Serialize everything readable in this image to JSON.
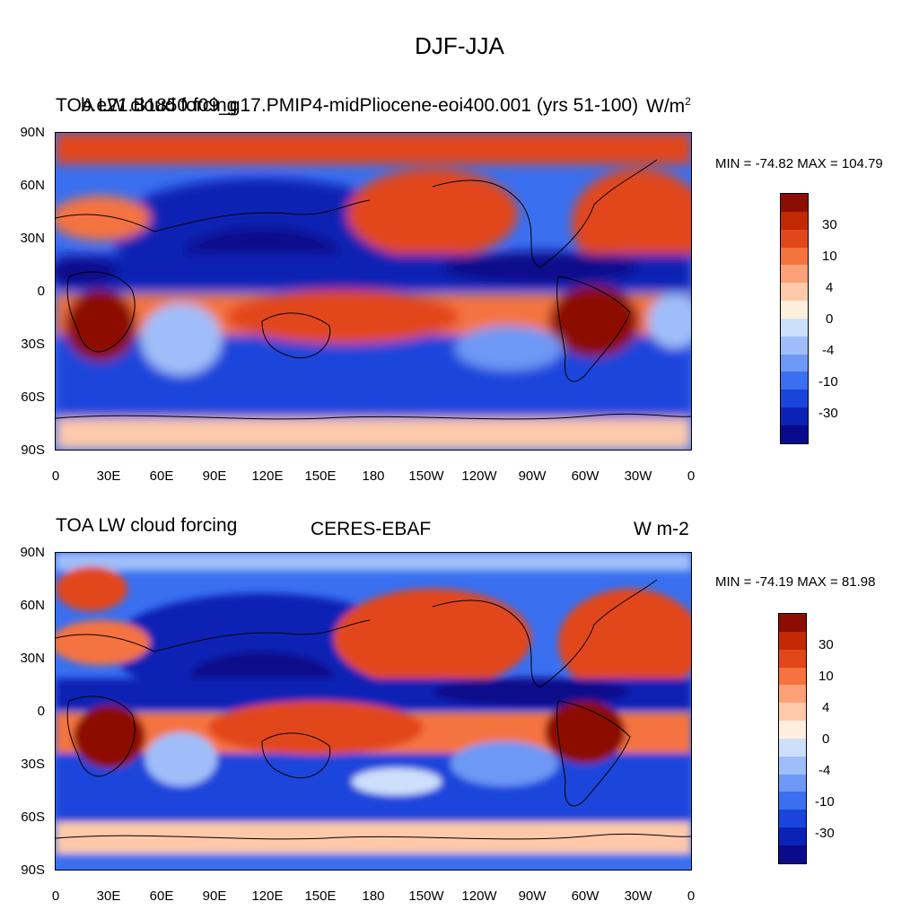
{
  "figure": {
    "title": "DJF-JJA"
  },
  "palette": [
    "#0a0a8c",
    "#0c22b4",
    "#1a45db",
    "#3a6ff0",
    "#6d98f5",
    "#9fbef9",
    "#cde0fb",
    "#fdeede",
    "#fdc9aa",
    "#fca078",
    "#f4733f",
    "#e2461b",
    "#c12a05",
    "#8c0e02"
  ],
  "colorbar_labels": [
    "30",
    "10",
    "4",
    "0",
    "-4",
    "-10",
    "-30"
  ],
  "axes": {
    "lat_labels": [
      "90N",
      "60N",
      "30N",
      "0",
      "30S",
      "60S",
      "90S"
    ],
    "lon_labels": [
      "0",
      "30E",
      "60E",
      "90E",
      "120E",
      "150E",
      "180",
      "150W",
      "120W",
      "90W",
      "60W",
      "30W",
      "0"
    ]
  },
  "panels": [
    {
      "left_title": "TOA LW cloud forcing",
      "center_title": "b.e21.B1850.f09_g17.PMIP4-midPliocene-eoi400.001 (yrs 51-100)",
      "units_prefix": "W/m",
      "units_sup": "2",
      "min_max": "MIN = -74.82 MAX = 104.79"
    },
    {
      "left_title": "TOA LW cloud forcing",
      "center_title": "CERES-EBAF",
      "units": "W m-2",
      "min_max": "MIN = -74.19 MAX =  81.98"
    }
  ]
}
